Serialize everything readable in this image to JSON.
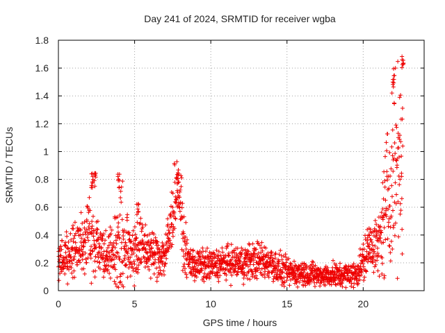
{
  "chart_data": {
    "type": "scatter",
    "title": "Day 241 of 2024, SRMTID for receiver wgba",
    "xlabel": "GPS time / hours",
    "ylabel": "SRMTID / TECUs",
    "xlim": [
      0,
      24
    ],
    "ylim": [
      0,
      1.8
    ],
    "xticks": [
      0,
      5,
      10,
      15,
      20
    ],
    "xtick_labels": [
      "0",
      "5",
      "10",
      "15",
      "20"
    ],
    "yticks": [
      0,
      0.2,
      0.4,
      0.6,
      0.8,
      1.0,
      1.2,
      1.4,
      1.6,
      1.8
    ],
    "ytick_labels": [
      "0",
      "0.2",
      "0.4",
      "0.6",
      "0.8",
      "1",
      "1.2",
      "1.4",
      "1.6",
      "1.8"
    ],
    "grid": true,
    "marker": "+",
    "color": "#ee0000",
    "series": [
      {
        "name": "SRMTID",
        "profile_description": "approximate envelope of dense scatter (time in hours, typical value, spread)",
        "x": [
          0,
          0.5,
          1,
          1.5,
          2,
          2.3,
          2.5,
          3,
          3.5,
          4,
          4.5,
          5,
          5.5,
          6,
          6.5,
          7,
          7.3,
          7.6,
          7.8,
          8.0,
          8.2,
          8.5,
          9,
          10,
          11,
          12,
          13,
          14,
          14.5,
          15,
          16,
          17,
          18,
          19,
          19.5,
          20,
          20.5,
          21,
          21.5,
          22,
          22.3,
          22.6
        ],
        "y": [
          0.2,
          0.25,
          0.3,
          0.32,
          0.4,
          0.45,
          0.35,
          0.28,
          0.27,
          0.35,
          0.3,
          0.3,
          0.32,
          0.28,
          0.25,
          0.25,
          0.4,
          0.65,
          0.75,
          0.65,
          0.35,
          0.22,
          0.18,
          0.18,
          0.2,
          0.2,
          0.22,
          0.2,
          0.15,
          0.13,
          0.13,
          0.11,
          0.11,
          0.11,
          0.12,
          0.2,
          0.35,
          0.3,
          0.6,
          0.9,
          0.95,
          1.05
        ],
        "spread": [
          0.08,
          0.1,
          0.12,
          0.12,
          0.18,
          0.28,
          0.12,
          0.1,
          0.1,
          0.3,
          0.12,
          0.15,
          0.12,
          0.1,
          0.1,
          0.1,
          0.15,
          0.15,
          0.12,
          0.15,
          0.12,
          0.08,
          0.07,
          0.07,
          0.07,
          0.08,
          0.08,
          0.08,
          0.07,
          0.06,
          0.06,
          0.05,
          0.05,
          0.06,
          0.06,
          0.1,
          0.12,
          0.12,
          0.3,
          0.4,
          0.4,
          0.55
        ],
        "peaks": [
          {
            "x": 2.2,
            "y": 0.86
          },
          {
            "x": 2.4,
            "y": 0.85
          },
          {
            "x": 3.95,
            "y": 0.85
          },
          {
            "x": 5.2,
            "y": 0.64
          },
          {
            "x": 7.85,
            "y": 0.88
          },
          {
            "x": 22.0,
            "y": 1.55
          },
          {
            "x": 22.6,
            "y": 1.72
          }
        ]
      }
    ]
  }
}
